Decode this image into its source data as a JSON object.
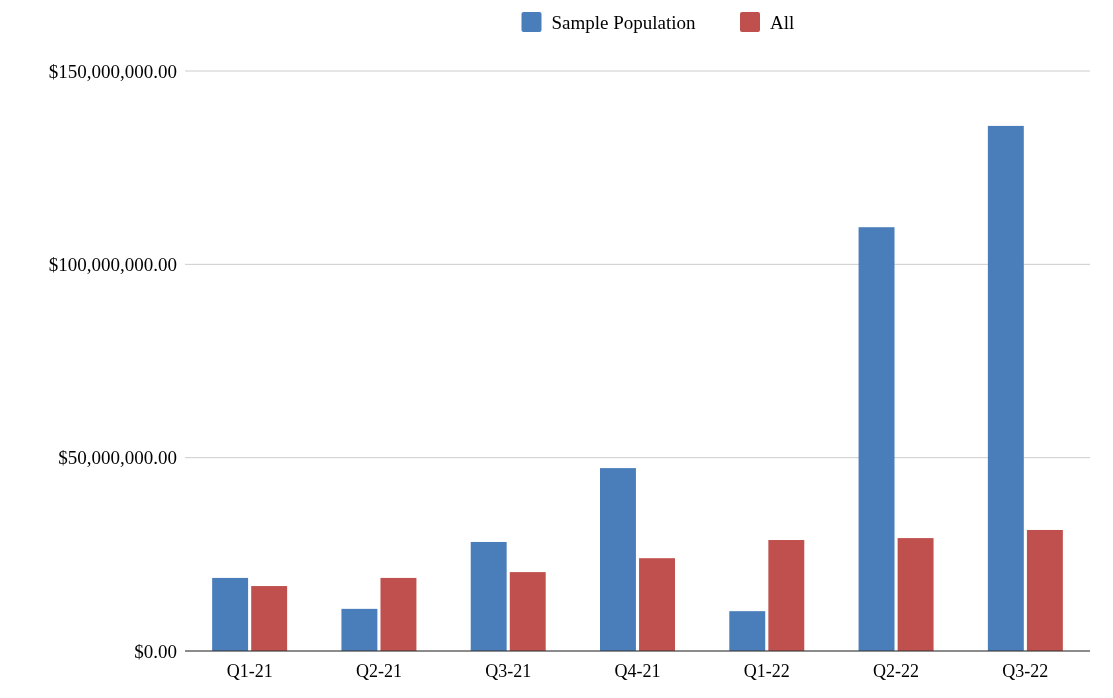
{
  "chart_data": {
    "type": "bar",
    "categories": [
      "Q1-21",
      "Q2-21",
      "Q3-21",
      "Q4-21",
      "Q1-22",
      "Q2-22",
      "Q3-22"
    ],
    "series": [
      {
        "name": "Sample Population",
        "color": "#4a7ebb",
        "values": [
          18900000,
          10900000,
          28200000,
          47300000,
          10300000,
          109600000,
          135800000
        ]
      },
      {
        "name": "All",
        "color": "#c0504d",
        "values": [
          16800000,
          18900000,
          20400000,
          24000000,
          28700000,
          29200000,
          31300000
        ]
      }
    ],
    "ylim": [
      0,
      150000000
    ],
    "yticks": [
      {
        "value": 0,
        "label": "$0.00"
      },
      {
        "value": 50000000,
        "label": "$50,000,000.00"
      },
      {
        "value": 100000000,
        "label": "$100,000,000.00"
      },
      {
        "value": 150000000,
        "label": "$150,000,000.00"
      }
    ],
    "grid": "y",
    "legend": "top"
  }
}
